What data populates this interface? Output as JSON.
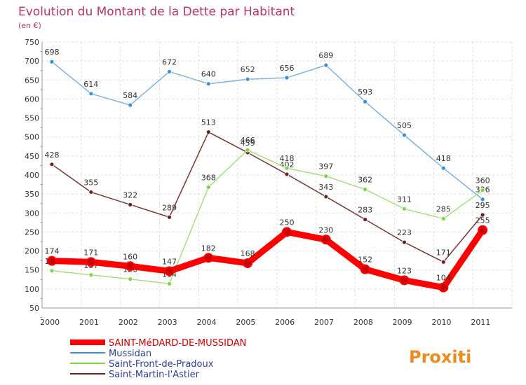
{
  "chart_data": {
    "type": "line",
    "title": "Evolution du Montant de la Dette par Habitant",
    "subtitle": "(en €)",
    "x": [
      "2000",
      "2001",
      "2002",
      "2003",
      "2004",
      "2005",
      "2006",
      "2007",
      "2008",
      "2009",
      "2010",
      "2011"
    ],
    "ylim": [
      50,
      750
    ],
    "yticks": [
      50,
      100,
      150,
      200,
      250,
      300,
      350,
      400,
      450,
      500,
      550,
      600,
      650,
      700,
      750
    ],
    "grid": true,
    "legend": "bottom-left",
    "series": [
      {
        "name": "SAINT-MéDARD-DE-MUSSIDAN",
        "color": "#ff0000",
        "line_color": "#ff0000",
        "values": [
          174,
          171,
          160,
          147,
          182,
          168,
          250,
          230,
          152,
          123,
          104,
          255
        ],
        "labels": [
          "174",
          "171",
          "160",
          "147",
          "182",
          "168",
          "250",
          "230",
          "152",
          "123",
          "104",
          "255"
        ]
      },
      {
        "name": "Mussidan",
        "color": "#3a8fd6",
        "line_color": "#7fb2dd",
        "values": [
          698,
          614,
          584,
          672,
          640,
          652,
          656,
          689,
          593,
          505,
          418,
          336
        ],
        "labels": [
          "698",
          "614",
          "584",
          "672",
          "640",
          "652",
          "656",
          "689",
          "593",
          "505",
          "418",
          "336"
        ]
      },
      {
        "name": "Saint-Front-de-Pradoux",
        "color": "#7ed442",
        "line_color": "#a5e07e",
        "values": [
          148,
          137,
          126,
          114,
          368,
          466,
          418,
          397,
          362,
          311,
          285,
          360
        ],
        "labels": [
          "148",
          "137",
          "126",
          "114",
          "368",
          "466",
          "418",
          "397",
          "362",
          "311",
          "285",
          "360"
        ]
      },
      {
        "name": "Saint-Martin-l'Astier",
        "color": "#6b1f1f",
        "line_color": "#7a3535",
        "values": [
          428,
          355,
          322,
          289,
          513,
          459,
          402,
          343,
          283,
          223,
          171,
          295
        ],
        "labels": [
          "428",
          "355",
          "322",
          "289",
          "513",
          "459",
          "402",
          "343",
          "283",
          "223",
          "171",
          "295"
        ]
      }
    ]
  },
  "logo": {
    "text": "Proxiti"
  }
}
